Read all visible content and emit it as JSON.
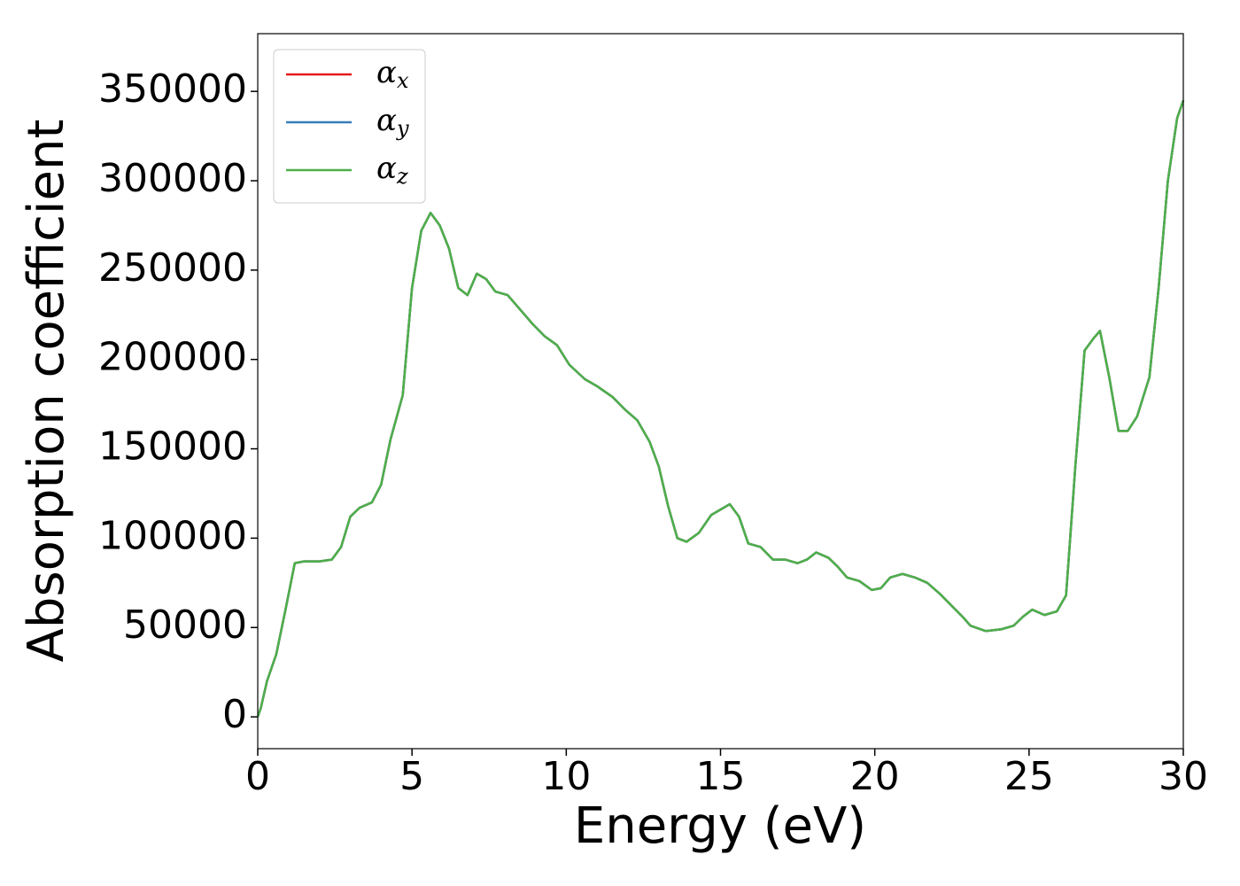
{
  "chart_data": {
    "type": "line",
    "xlabel": "Energy (eV)",
    "ylabel": "Absorption coefficient",
    "x": [
      0,
      0.1,
      0.3,
      0.6,
      0.9,
      1.2,
      1.5,
      2,
      2.4,
      2.7,
      3.0,
      3.3,
      3.7,
      4.0,
      4.3,
      4.7,
      5.0,
      5.3,
      5.6,
      5.9,
      6.2,
      6.5,
      6.8,
      7.1,
      7.4,
      7.7,
      8.1,
      8.5,
      8.9,
      9.3,
      9.7,
      10.1,
      10.6,
      11.0,
      11.5,
      11.9,
      12.3,
      12.7,
      13.0,
      13.3,
      13.6,
      13.9,
      14.3,
      14.7,
      15.0,
      15.3,
      15.6,
      15.9,
      16.3,
      16.7,
      17.1,
      17.5,
      17.8,
      18.1,
      18.5,
      18.8,
      19.1,
      19.5,
      19.9,
      20.2,
      20.5,
      20.9,
      21.3,
      21.7,
      22.1,
      22.5,
      22.9,
      23.1,
      23.6,
      24.1,
      24.5,
      24.8,
      25.1,
      25.5,
      25.9,
      26.2,
      26.5,
      26.8,
      27.1,
      27.3,
      27.6,
      27.9,
      28.2,
      28.5,
      28.9,
      29.2,
      29.5,
      29.8,
      30
    ],
    "series": [
      {
        "name": "αx",
        "color": "#e41a1c",
        "values": [
          0,
          5000,
          20000,
          35000,
          60000,
          86000,
          87000,
          87000,
          88000,
          95000,
          112000,
          117000,
          120000,
          130000,
          155000,
          180000,
          240000,
          272000,
          282000,
          275000,
          262000,
          240000,
          236000,
          248000,
          245000,
          238000,
          236000,
          228000,
          220000,
          213000,
          208000,
          197000,
          189000,
          185000,
          179000,
          172000,
          166000,
          154000,
          140000,
          118000,
          100000,
          98000,
          103000,
          113000,
          116000,
          119000,
          112000,
          97000,
          95000,
          88000,
          88000,
          86000,
          88000,
          92000,
          89000,
          84000,
          78000,
          76000,
          71000,
          72000,
          78000,
          80000,
          78000,
          75000,
          69000,
          62000,
          55000,
          51000,
          48000,
          49000,
          51000,
          56000,
          60000,
          57000,
          59000,
          68000,
          140000,
          205000,
          212000,
          216000,
          190000,
          160000,
          160000,
          168000,
          190000,
          240000,
          300000,
          335000,
          345000
        ]
      },
      {
        "name": "αy",
        "color": "#377eb8",
        "values": [
          0,
          5000,
          20000,
          35000,
          60000,
          86000,
          87000,
          87000,
          88000,
          95000,
          112000,
          117000,
          120000,
          130000,
          155000,
          180000,
          240000,
          272000,
          282000,
          275000,
          262000,
          240000,
          236000,
          248000,
          245000,
          238000,
          236000,
          228000,
          220000,
          213000,
          208000,
          197000,
          189000,
          185000,
          179000,
          172000,
          166000,
          154000,
          140000,
          118000,
          100000,
          98000,
          103000,
          113000,
          116000,
          119000,
          112000,
          97000,
          95000,
          88000,
          88000,
          86000,
          88000,
          92000,
          89000,
          84000,
          78000,
          76000,
          71000,
          72000,
          78000,
          80000,
          78000,
          75000,
          69000,
          62000,
          55000,
          51000,
          48000,
          49000,
          51000,
          56000,
          60000,
          57000,
          59000,
          68000,
          140000,
          205000,
          212000,
          216000,
          190000,
          160000,
          160000,
          168000,
          190000,
          240000,
          300000,
          335000,
          345000
        ]
      },
      {
        "name": "αz",
        "color": "#4daf4a",
        "values": [
          0,
          5000,
          20000,
          35000,
          60000,
          86000,
          87000,
          87000,
          88000,
          95000,
          112000,
          117000,
          120000,
          130000,
          155000,
          180000,
          240000,
          272000,
          282000,
          275000,
          262000,
          240000,
          236000,
          248000,
          245000,
          238000,
          236000,
          228000,
          220000,
          213000,
          208000,
          197000,
          189000,
          185000,
          179000,
          172000,
          166000,
          154000,
          140000,
          118000,
          100000,
          98000,
          103000,
          113000,
          116000,
          119000,
          112000,
          97000,
          95000,
          88000,
          88000,
          86000,
          88000,
          92000,
          89000,
          84000,
          78000,
          76000,
          71000,
          72000,
          78000,
          80000,
          78000,
          75000,
          69000,
          62000,
          55000,
          51000,
          48000,
          49000,
          51000,
          56000,
          60000,
          57000,
          59000,
          68000,
          140000,
          205000,
          212000,
          216000,
          190000,
          160000,
          160000,
          168000,
          190000,
          240000,
          300000,
          335000,
          345000
        ]
      }
    ],
    "xlim": [
      0,
      30
    ],
    "xticks": [
      0,
      5,
      10,
      15,
      20,
      25,
      30
    ],
    "ylim": [
      -17800,
      382300
    ],
    "yticks": [
      0,
      50000,
      100000,
      150000,
      200000,
      250000,
      300000,
      350000
    ],
    "grid": false,
    "legend": "upper left"
  }
}
